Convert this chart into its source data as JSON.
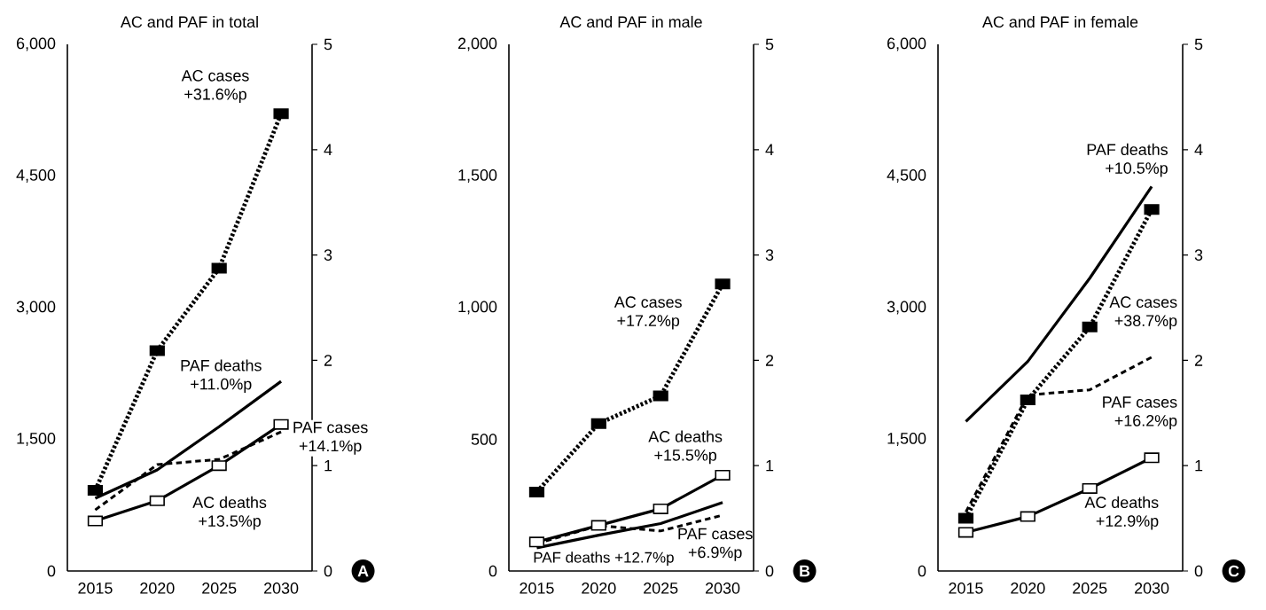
{
  "chart_data": [
    {
      "type": "line",
      "title": "AC and PAF in total",
      "categories": [
        "2015",
        "2020",
        "2025",
        "2030"
      ],
      "series": [
        {
          "name": "AC cases",
          "color": "#000000",
          "colors": [
            "#000000",
            "#000000",
            "#000000",
            "#000000"
          ],
          "marker": "square",
          "line_style": "dotted",
          "values": [
            920,
            2510,
            3450,
            5210
          ]
        },
        {
          "name": "AC deaths",
          "color": "#000000",
          "colors": [
            "#ffffff",
            "#ffffff",
            "#ffffff",
            "#ffffff"
          ],
          "marker": "square",
          "line_style": "solid",
          "values": [
            570,
            800,
            1200,
            1670
          ]
        },
        {
          "name": "PAF cases",
          "color": "#000000",
          "line_style": "dashed",
          "axis": "y2",
          "values": [
            0.58,
            1.01,
            1.06,
            1.32
          ]
        },
        {
          "name": "PAF deaths",
          "color": "#000000",
          "line_style": "solid",
          "axis": "y2",
          "values": [
            0.69,
            0.96,
            1.37,
            1.8
          ]
        }
      ],
      "annotations": [
        "+31.6%p",
        "+13.5%p",
        "+14.1%p",
        "+11.0%p",
        "A"
      ],
      "ylim": [
        0,
        6000
      ],
      "yticks": [
        0,
        {
          "value": 1500,
          "label": "1,500"
        },
        {
          "value": 3000,
          "label": "3,000"
        },
        {
          "value": 4500,
          "label": "4,500"
        },
        {
          "value": 6000,
          "label": "6,000"
        }
      ],
      "y2lim": [
        0,
        5
      ],
      "y2ticks": [
        0,
        1,
        2,
        3,
        4,
        5
      ],
      "grid": false
    },
    {
      "type": "line",
      "title": "AC and PAF in male",
      "categories": [
        "2015",
        "2020",
        "2025",
        "2030"
      ],
      "series": [
        {
          "name": "AC cases",
          "color": "#000000",
          "colors": [
            "#000000",
            "#000000",
            "#000000",
            "#000000"
          ],
          "marker": "square",
          "line_style": "dotted",
          "values": [
            300,
            560,
            665,
            1090
          ]
        },
        {
          "name": "AC deaths",
          "color": "#000000",
          "colors": [
            "#ffffff",
            "#ffffff",
            "#ffffff",
            "#ffffff"
          ],
          "marker": "square",
          "line_style": "solid",
          "values": [
            110,
            173,
            236,
            364
          ]
        },
        {
          "name": "PAF cases",
          "color": "#000000",
          "line_style": "dashed",
          "axis": "y2",
          "values": [
            0.26,
            0.43,
            0.38,
            0.53
          ]
        },
        {
          "name": "PAF deaths",
          "color": "#000000",
          "line_style": "solid",
          "axis": "y2",
          "values": [
            0.22,
            0.34,
            0.45,
            0.65
          ]
        }
      ],
      "annotations": [
        "+17.2%p",
        "+15.5%p",
        "+6.9%p",
        "+12.7%p",
        "B"
      ],
      "ylim": [
        0,
        2000
      ],
      "yticks": [
        0,
        500,
        {
          "value": 1000,
          "label": "1,000"
        },
        {
          "value": 1500,
          "label": "1,500"
        },
        {
          "value": 2000,
          "label": "2,000"
        }
      ],
      "y2lim": [
        0,
        5
      ],
      "y2ticks": [
        0,
        1,
        2,
        3,
        4,
        5
      ],
      "grid": false
    },
    {
      "type": "line",
      "title": "AC and PAF in female",
      "categories": [
        "2015",
        "2020",
        "2025",
        "2030"
      ],
      "series": [
        {
          "name": "AC cases",
          "color": "#000000",
          "colors": [
            "#000000",
            "#000000",
            "#000000",
            "#000000"
          ],
          "marker": "square",
          "line_style": "dotted",
          "values": [
            600,
            1950,
            2780,
            4120
          ]
        },
        {
          "name": "AC deaths",
          "color": "#000000",
          "colors": [
            "#ffffff",
            "#ffffff",
            "#ffffff",
            "#ffffff"
          ],
          "marker": "square",
          "line_style": "solid",
          "values": [
            440,
            620,
            940,
            1290
          ]
        },
        {
          "name": "PAF cases",
          "color": "#000000",
          "line_style": "dashed",
          "axis": "y2",
          "values": [
            0.56,
            1.67,
            1.72,
            2.03
          ]
        },
        {
          "name": "PAF deaths",
          "color": "#000000",
          "line_style": "solid",
          "axis": "y2",
          "values": [
            1.42,
            1.99,
            2.78,
            3.65
          ]
        }
      ],
      "annotations": [
        "+38.7%p",
        "+12.9%p",
        "+16.2%p",
        "+10.5%p",
        "C"
      ],
      "ylim": [
        0,
        6000
      ],
      "yticks": [
        0,
        {
          "value": 1500,
          "label": "1,500"
        },
        {
          "value": 3000,
          "label": "3,000"
        },
        {
          "value": 4500,
          "label": "4,500"
        },
        {
          "value": 6000,
          "label": "6,000"
        }
      ],
      "y2lim": [
        0,
        5
      ],
      "y2ticks": [
        0,
        1,
        2,
        3,
        4,
        5
      ],
      "grid": false
    }
  ]
}
